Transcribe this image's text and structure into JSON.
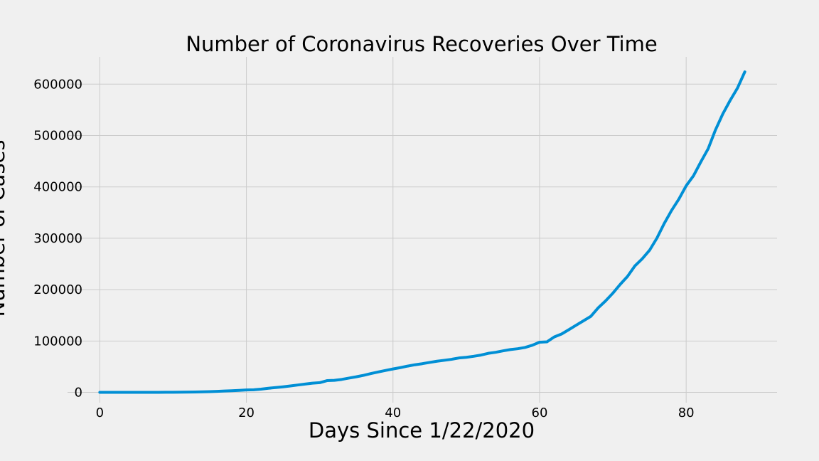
{
  "chart_data": {
    "type": "line",
    "title": "Number of Coronavirus Recoveries Over Time",
    "xlabel": "Days Since 1/22/2020",
    "ylabel": "Number of Cases",
    "xlim": [
      -4.4,
      92.4
    ],
    "ylim": [
      -20000,
      653000
    ],
    "x_ticks": [
      0,
      20,
      40,
      60,
      80
    ],
    "y_ticks": [
      0,
      100000,
      200000,
      300000,
      400000,
      500000,
      600000
    ],
    "grid": true,
    "background_color": "#f0f0f0",
    "grid_color": "#cbcbcb",
    "series": [
      {
        "color": "#008fd5",
        "x": [
          0,
          1,
          2,
          3,
          4,
          5,
          6,
          7,
          8,
          9,
          10,
          11,
          12,
          13,
          14,
          15,
          16,
          17,
          18,
          19,
          20,
          21,
          22,
          23,
          24,
          25,
          26,
          27,
          28,
          29,
          30,
          31,
          32,
          33,
          34,
          35,
          36,
          37,
          38,
          39,
          40,
          41,
          42,
          43,
          44,
          45,
          46,
          47,
          48,
          49,
          50,
          51,
          52,
          53,
          54,
          55,
          56,
          57,
          58,
          59,
          60,
          61,
          62,
          63,
          64,
          65,
          66,
          67,
          68,
          69,
          70,
          71,
          72,
          73,
          74,
          75,
          76,
          77,
          78,
          79,
          80,
          81,
          82,
          83,
          84,
          85,
          86,
          87,
          88
        ],
        "values": [
          28,
          30,
          36,
          39,
          52,
          61,
          107,
          126,
          143,
          222,
          284,
          472,
          623,
          852,
          1124,
          1487,
          2011,
          2616,
          3244,
          3946,
          4683,
          5150,
          6295,
          8058,
          9395,
          10865,
          12583,
          14352,
          16121,
          17898,
          18890,
          22886,
          23394,
          25227,
          27905,
          30384,
          33277,
          36711,
          39782,
          42716,
          45602,
          48228,
          51171,
          53797,
          55866,
          58359,
          60694,
          62494,
          64404,
          67003,
          68324,
          70251,
          72624,
          76034,
          78088,
          80840,
          83312,
          84975,
          87420,
          91692,
          97704,
          98334,
          107890,
          113604,
          122150,
          130915,
          139415,
          148082,
          164566,
          178034,
          193177,
          210263,
          225796,
          246152,
          260012,
          276515,
          300054,
          328661,
          353975,
          376096,
          402110,
          421722,
          448655,
          474261,
          511019,
          542107,
          568343,
          592319,
          623903
        ]
      }
    ]
  }
}
